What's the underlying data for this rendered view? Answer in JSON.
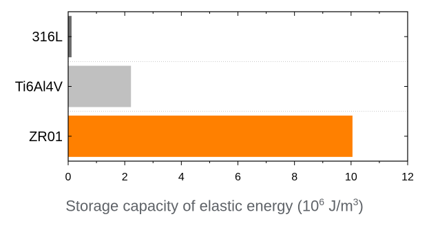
{
  "chart_data": {
    "type": "bar",
    "orientation": "horizontal",
    "categories": [
      "316L",
      "Ti6Al4V",
      "ZR01"
    ],
    "values": [
      0.12,
      2.22,
      10.05
    ],
    "colors": [
      "#6b6b6b",
      "#c0c0c0",
      "#ff8000"
    ],
    "xlim": [
      0,
      12
    ],
    "xticks": [
      "0",
      "2",
      "4",
      "6",
      "8",
      "10",
      "12"
    ],
    "xlabel": {
      "prefix": "Storage capacity of elastic energy (10",
      "exp1": "6",
      "middle": " J/m",
      "exp2": "3",
      "suffix": ")"
    },
    "grid": "dotted separators between categories"
  }
}
